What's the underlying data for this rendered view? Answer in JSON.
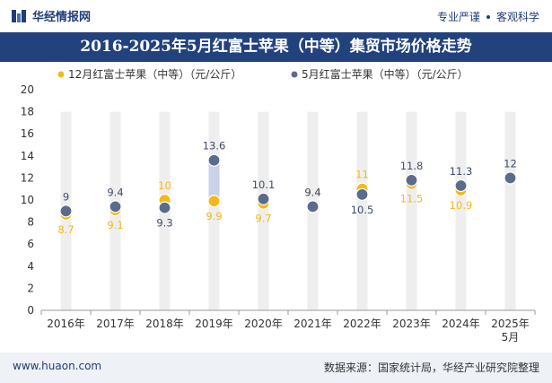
{
  "header": {
    "brand": "华经情报网",
    "tag1": "专业严谨",
    "tag2": "客观科学"
  },
  "title": "2016-2025年5月红富士苹果（中等）集贸市场价格走势",
  "footer": {
    "url": "www.huaon.com",
    "source": "数据来源：国家统计局，华经产业研究院整理"
  },
  "colors": {
    "title_bg": "#22427e",
    "series_dec": "#f5b915",
    "series_may": "#5a6b8c",
    "column": "#eeeeee",
    "highlight": "#c9d2e8",
    "label_may": "#3d4b6e"
  },
  "chart_data": {
    "type": "scatter",
    "categories": [
      "2016年",
      "2017年",
      "2018年",
      "2019年",
      "2020年",
      "2021年",
      "2022年",
      "2023年",
      "2024年",
      "2025年\n5月"
    ],
    "series": [
      {
        "name": "12月红富士苹果（中等）（元/公斤）",
        "values": [
          8.7,
          9.1,
          10,
          9.9,
          9.7,
          9.4,
          11,
          11.5,
          10.9,
          null
        ]
      },
      {
        "name": "5月红富士苹果（中等）（元/公斤）",
        "values": [
          9,
          9.4,
          9.3,
          13.6,
          10.1,
          9.4,
          10.5,
          11.8,
          11.3,
          12
        ]
      }
    ],
    "ylim": [
      0,
      20
    ],
    "yticks": [
      0,
      2,
      4,
      6,
      8,
      10,
      12,
      14,
      16,
      18,
      20
    ],
    "legend": "top"
  }
}
